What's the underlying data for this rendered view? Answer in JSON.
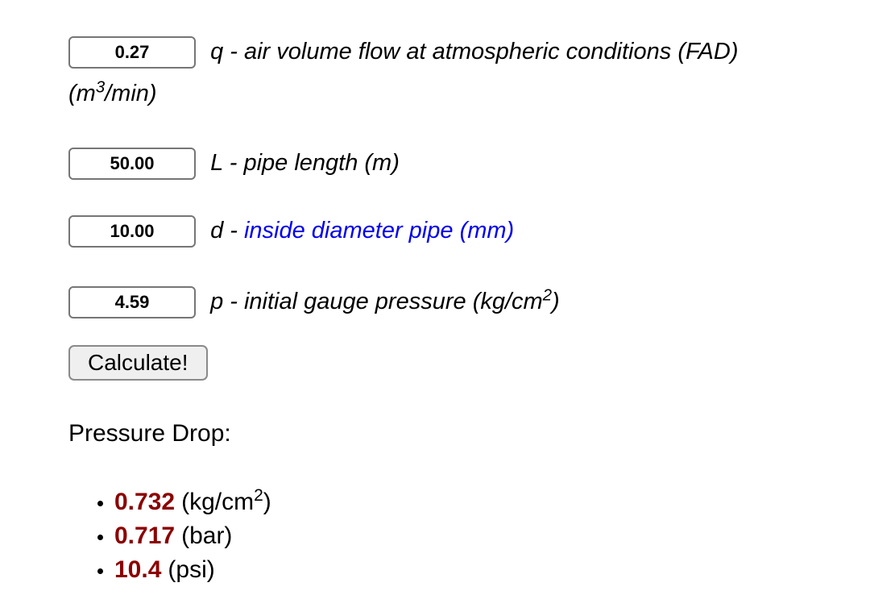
{
  "form": {
    "rows": [
      {
        "value": "0.27",
        "label": "q - air volume flow at atmospheric conditions (FAD)",
        "unit_prefix": "(m",
        "unit_sup": "3",
        "unit_suffix": "/min)"
      },
      {
        "value": "50.00",
        "label": "L - pipe length (m)"
      },
      {
        "value": "10.00",
        "label": "d - ",
        "link_text": "inside diameter pipe (mm)"
      },
      {
        "value": "4.59",
        "label": "p - initial gauge pressure (kg/cm",
        "label_sup": "2",
        "label_suffix": ")"
      }
    ],
    "calculate_label": "Calculate!"
  },
  "results": {
    "heading": "Pressure Drop:",
    "items": [
      {
        "value": "0.732",
        "unit_prefix": "(kg/cm",
        "unit_sup": "2",
        "unit_suffix": ")"
      },
      {
        "value": "0.717",
        "unit_prefix": "(bar)",
        "unit_sup": "",
        "unit_suffix": ""
      },
      {
        "value": "10.4",
        "unit_prefix": "(psi)",
        "unit_sup": "",
        "unit_suffix": ""
      }
    ]
  },
  "colors": {
    "link_blue": "#0000EE",
    "result_red": "#8B0000"
  }
}
